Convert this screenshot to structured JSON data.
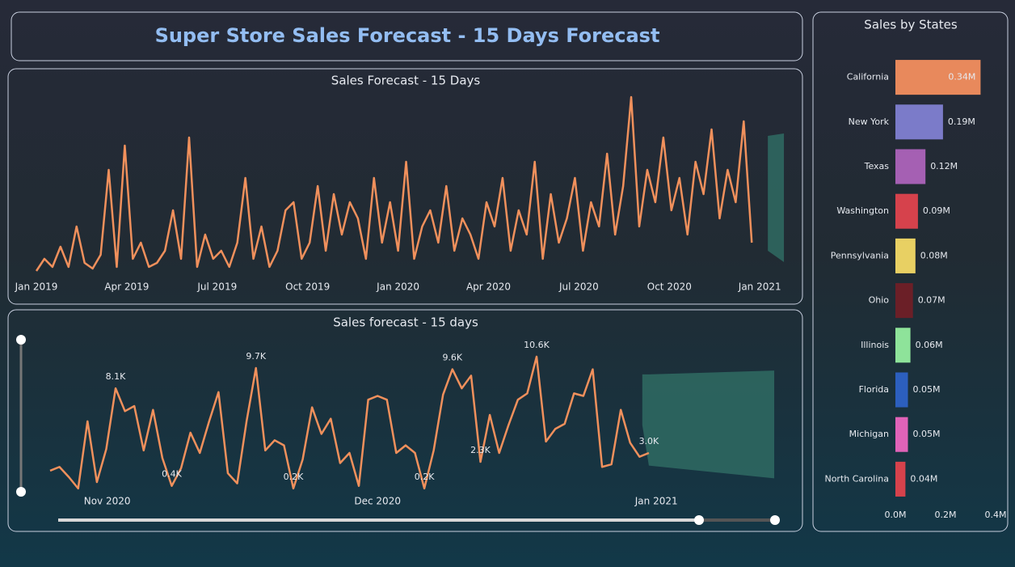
{
  "header": {
    "title": "Super Store Sales Forecast - 15 Days Forecast"
  },
  "chart_data": [
    {
      "type": "line",
      "title": "Sales Forecast - 15 Days",
      "color": "#f0905c",
      "values": [
        0.5,
        2,
        1,
        3.5,
        1,
        6,
        1.5,
        0.8,
        2.5,
        13,
        1,
        16,
        2,
        4,
        1,
        1.5,
        3,
        8,
        2,
        17,
        1,
        5,
        2,
        3,
        1,
        4,
        12,
        2,
        6,
        1,
        3,
        8,
        9,
        2,
        4,
        11,
        3,
        10,
        5,
        9,
        7,
        2,
        12,
        4,
        9,
        3,
        14,
        2,
        6,
        8,
        4,
        11,
        3,
        7,
        5,
        2,
        9,
        6,
        12,
        3,
        8,
        5,
        14,
        2,
        10,
        4,
        7,
        12,
        3,
        9,
        6,
        15,
        5,
        11,
        22,
        6,
        13,
        9,
        17,
        8,
        12,
        5,
        14,
        10,
        18,
        7,
        13,
        9,
        19,
        4
      ],
      "forecast": {
        "x": [
          91,
          93
        ],
        "upper": [
          17.2,
          17.5
        ],
        "lower": [
          3,
          1.6
        ],
        "color": "#2f6b63"
      },
      "xlim": [
        0,
        94
      ],
      "ylim": [
        0,
        22
      ],
      "xticks": [
        {
          "value": 0,
          "label": "Jan 2019"
        },
        {
          "value": 11.25,
          "label": "Apr 2019"
        },
        {
          "value": 22.5,
          "label": "Jul 2019"
        },
        {
          "value": 33.75,
          "label": "Oct 2019"
        },
        {
          "value": 45,
          "label": "Jan 2020"
        },
        {
          "value": 56.25,
          "label": "Apr 2020"
        },
        {
          "value": 67.5,
          "label": "Jul 2020"
        },
        {
          "value": 78.75,
          "label": "Oct 2020"
        },
        {
          "value": 90,
          "label": "Jan 2021"
        }
      ]
    },
    {
      "type": "line",
      "title": "Sales forecast - 15 days",
      "color": "#f0905c",
      "values": [
        1.6,
        1.9,
        1.1,
        0.2,
        5.5,
        0.7,
        3.3,
        8.1,
        6.3,
        6.7,
        3.2,
        6.4,
        2.6,
        0.4,
        1.8,
        4.6,
        3.0,
        5.5,
        7.8,
        1.4,
        0.6,
        5.5,
        9.7,
        3.2,
        4.0,
        3.6,
        0.2,
        2.5,
        6.6,
        4.5,
        5.7,
        2.2,
        3.0,
        0.4,
        7.2,
        7.5,
        7.2,
        3.0,
        3.6,
        3.0,
        0.2,
        3.2,
        7.6,
        9.6,
        8.1,
        9.1,
        2.3,
        6.0,
        3.0,
        5.2,
        7.2,
        7.7,
        10.6,
        3.9,
        4.9,
        5.3,
        7.7,
        7.5,
        9.6,
        1.9,
        2.1,
        6.4,
        3.8,
        2.7,
        3.0
      ],
      "value_labels": [
        null,
        null,
        null,
        null,
        null,
        null,
        null,
        "8.1K",
        null,
        null,
        null,
        null,
        null,
        "0.4K",
        null,
        null,
        null,
        null,
        null,
        null,
        null,
        null,
        "9.7K",
        null,
        null,
        null,
        "0.2K",
        null,
        null,
        null,
        null,
        null,
        null,
        null,
        null,
        null,
        null,
        null,
        null,
        null,
        "0.2K",
        null,
        null,
        "9.6K",
        null,
        null,
        "2.3K",
        null,
        null,
        null,
        null,
        null,
        "10.6K",
        null,
        null,
        null,
        null,
        null,
        null,
        null,
        null,
        null,
        null,
        null,
        "3.0K"
      ],
      "forecast": {
        "x": [
          63.3,
          64,
          77.4
        ],
        "upper": [
          9.2,
          9.2,
          9.5
        ],
        "lower": [
          5.2,
          2.0,
          1.0
        ],
        "color": "#2f6b63"
      },
      "xlim": [
        0,
        78
      ],
      "ylim": [
        0,
        12
      ],
      "xticks": [
        {
          "value": 6.1,
          "label": "Nov 2020"
        },
        {
          "value": 35,
          "label": "Dec 2020"
        },
        {
          "value": 64.8,
          "label": "Jan 2021"
        }
      ]
    },
    {
      "type": "hbar",
      "title": "Sales by States",
      "categories": [
        "California",
        "New York",
        "Texas",
        "Washington",
        "Pennsylvania",
        "Ohio",
        "Illinois",
        "Florida",
        "Michigan",
        "North Carolina"
      ],
      "values": [
        0.34,
        0.19,
        0.12,
        0.09,
        0.08,
        0.07,
        0.06,
        0.05,
        0.05,
        0.04
      ],
      "value_labels": [
        "0.34M",
        "0.19M",
        "0.12M",
        "0.09M",
        "0.08M",
        "0.07M",
        "0.06M",
        "0.05M",
        "0.05M",
        "0.04M"
      ],
      "colors": [
        "#e8895c",
        "#7b7bc9",
        "#a560b3",
        "#d6424c",
        "#e8d063",
        "#6b1f27",
        "#8ee39a",
        "#2c5fbe",
        "#e063b8",
        "#d6424c"
      ],
      "xlim": [
        0,
        0.4
      ],
      "xticks": [
        {
          "value": 0,
          "label": "0.0M"
        },
        {
          "value": 0.2,
          "label": "0.2M"
        },
        {
          "value": 0.4,
          "label": "0.4M"
        }
      ]
    }
  ]
}
